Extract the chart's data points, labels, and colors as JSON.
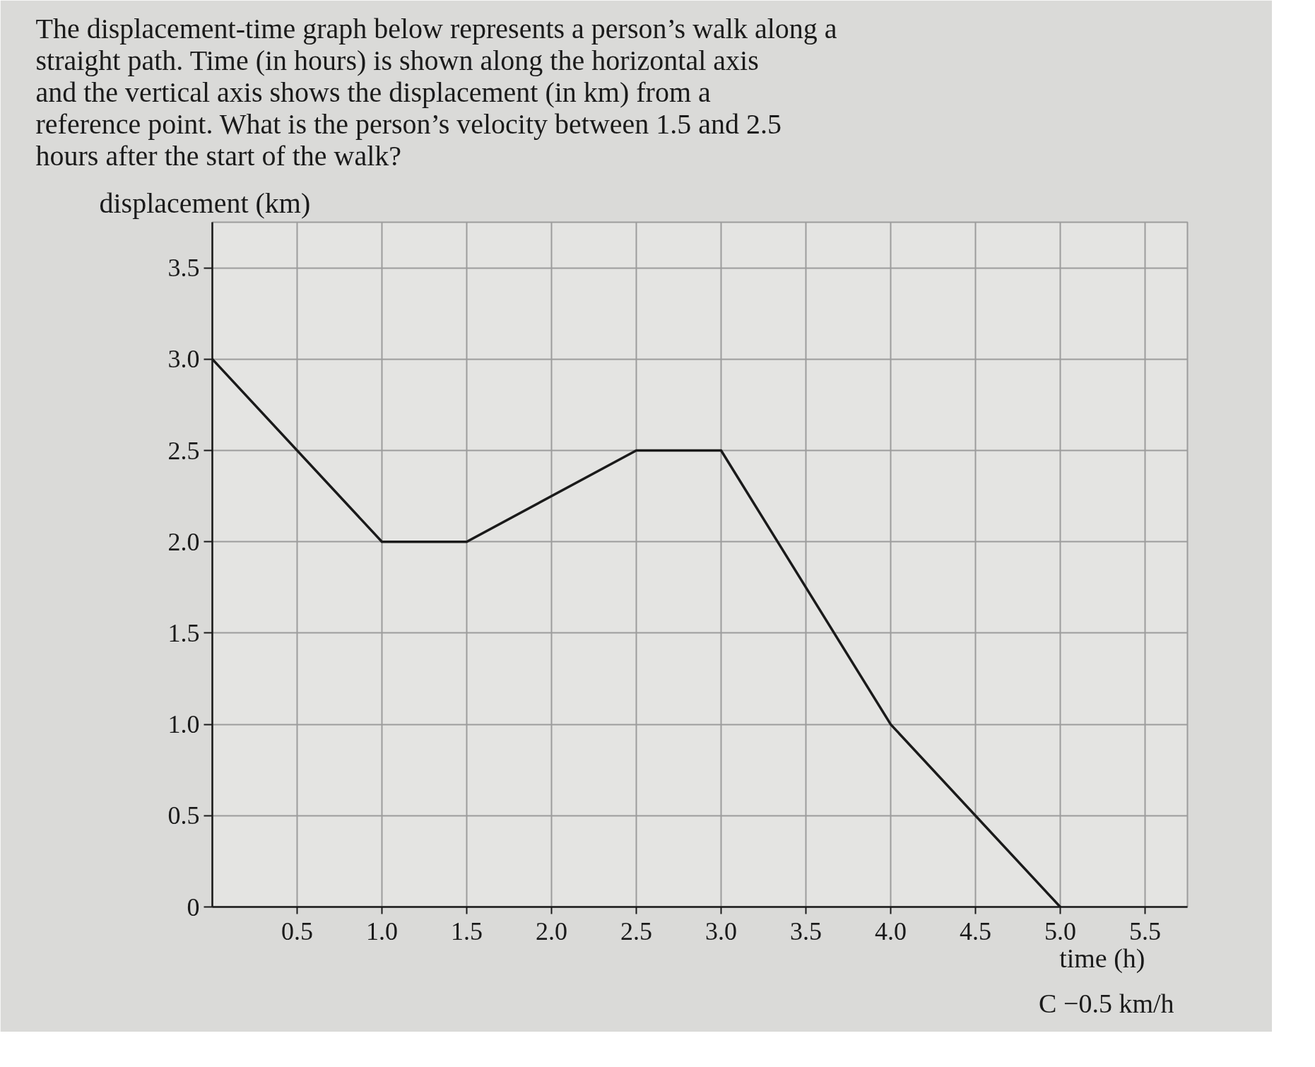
{
  "chart_data": {
    "type": "line",
    "title": "The displacement-time graph below represents a person’s walk along a straight path. Time (in hours) is shown along the horizontal axis and the vertical axis shows the displacement (in km) from a reference point. What is the person’s velocity between 1.5 and 2.5 hours after the start of the walk?",
    "xlabel": "time (h)",
    "ylabel": "displacement (km)",
    "x": [
      0,
      1,
      1.5,
      2.5,
      3,
      4,
      5
    ],
    "series": [
      {
        "color": "#1a1a1a",
        "values": [
          3,
          2,
          2,
          2.5,
          2.5,
          1,
          0
        ]
      }
    ],
    "xlim": [
      0,
      5.75
    ],
    "ylim": [
      0,
      3.75
    ],
    "xticks": [
      0.5,
      {
        "value": 1,
        "label": "1.0"
      },
      1.5,
      {
        "value": 2,
        "label": "2.0"
      },
      2.5,
      {
        "value": 3,
        "label": "3.0"
      },
      3.5,
      {
        "value": 4,
        "label": "4.0"
      },
      4.5,
      {
        "value": 5,
        "label": "5.0"
      },
      5.5
    ],
    "yticks": [
      0,
      0.5,
      {
        "value": 1,
        "label": "1.0"
      },
      1.5,
      {
        "value": 2,
        "label": "2.0"
      },
      2.5,
      {
        "value": 3,
        "label": "3.0"
      },
      3.5
    ],
    "grid": true,
    "marker": "none",
    "line_style": "solid",
    "annotations": [
      "C   −0.5 km/h"
    ]
  }
}
